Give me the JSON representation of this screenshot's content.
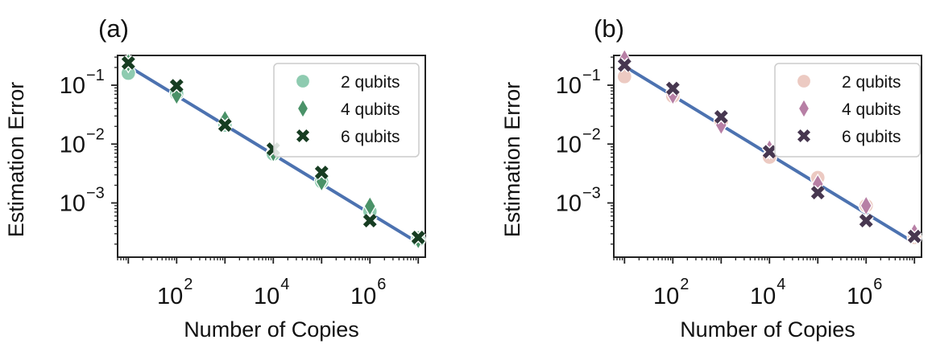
{
  "chart_data": [
    {
      "type": "scatter",
      "panel_label": "(a)",
      "xlabel": "Number of Copies",
      "ylabel": "Estimation Error",
      "x_scale": "log",
      "y_scale": "log",
      "xlim": [
        6,
        14000000
      ],
      "ylim": [
        0.00012,
        0.32
      ],
      "x_ticks": [
        {
          "value": 100,
          "base": "10",
          "exp": "2"
        },
        {
          "value": 10000,
          "base": "10",
          "exp": "4"
        },
        {
          "value": 1000000,
          "base": "10",
          "exp": "6"
        }
      ],
      "y_ticks": [
        {
          "value": 0.1,
          "base": "10",
          "exp": "−1"
        },
        {
          "value": 0.01,
          "base": "10",
          "exp": "−2"
        },
        {
          "value": 0.001,
          "base": "10",
          "exp": "−3"
        }
      ],
      "legend_position": "top-right",
      "fit_line": {
        "x": [
          10,
          10000000
        ],
        "y": [
          0.21,
          0.00021
        ],
        "color": "#4c72b0"
      },
      "series": [
        {
          "name": "2 qubits",
          "marker": "circle",
          "color": "#8ecbb0",
          "x": [
            10,
            100,
            1000,
            10000,
            100000,
            1000000,
            10000000
          ],
          "y": [
            0.16,
            0.072,
            0.021,
            0.0068,
            0.0023,
            0.00072,
            0.00024
          ]
        },
        {
          "name": "4 qubits",
          "marker": "diamond",
          "color": "#4a9268",
          "x": [
            10,
            100,
            1000,
            10000,
            100000,
            1000000,
            10000000
          ],
          "y": [
            0.24,
            0.068,
            0.026,
            0.0072,
            0.0023,
            0.00088,
            0.00024
          ]
        },
        {
          "name": "6 qubits",
          "marker": "x",
          "color": "#173d22",
          "x": [
            10,
            100,
            1000,
            10000,
            100000,
            1000000,
            10000000
          ],
          "y": [
            0.24,
            0.098,
            0.021,
            0.0082,
            0.0033,
            0.0005,
            0.00026
          ]
        }
      ]
    },
    {
      "type": "scatter",
      "panel_label": "(b)",
      "xlabel": "Number of Copies",
      "ylabel": "Estimation Error",
      "x_scale": "log",
      "y_scale": "log",
      "xlim": [
        6,
        14000000
      ],
      "ylim": [
        0.00012,
        0.32
      ],
      "x_ticks": [
        {
          "value": 100,
          "base": "10",
          "exp": "2"
        },
        {
          "value": 10000,
          "base": "10",
          "exp": "4"
        },
        {
          "value": 1000000,
          "base": "10",
          "exp": "6"
        }
      ],
      "y_ticks": [
        {
          "value": 0.1,
          "base": "10",
          "exp": "−1"
        },
        {
          "value": 0.01,
          "base": "10",
          "exp": "−2"
        },
        {
          "value": 0.001,
          "base": "10",
          "exp": "−3"
        }
      ],
      "legend_position": "top-right",
      "fit_line": {
        "x": [
          10,
          10000000
        ],
        "y": [
          0.21,
          0.00021
        ],
        "color": "#4c72b0"
      },
      "series": [
        {
          "name": "2 qubits",
          "marker": "circle",
          "color": "#eccac2",
          "x": [
            10,
            100,
            1000,
            10000,
            100000,
            1000000,
            10000000
          ],
          "y": [
            0.14,
            0.065,
            0.024,
            0.006,
            0.0027,
            0.0009,
            0.00026
          ]
        },
        {
          "name": "4 qubits",
          "marker": "diamond",
          "color": "#b77fa5",
          "x": [
            10,
            100,
            1000,
            10000,
            100000,
            1000000,
            10000000
          ],
          "y": [
            0.28,
            0.068,
            0.021,
            0.0082,
            0.0021,
            0.0009,
            0.00031
          ]
        },
        {
          "name": "6 qubits",
          "marker": "x",
          "color": "#473750",
          "x": [
            10,
            100,
            1000,
            10000,
            100000,
            1000000,
            10000000
          ],
          "y": [
            0.22,
            0.088,
            0.029,
            0.0074,
            0.0015,
            0.0005,
            0.00027
          ]
        }
      ]
    }
  ]
}
